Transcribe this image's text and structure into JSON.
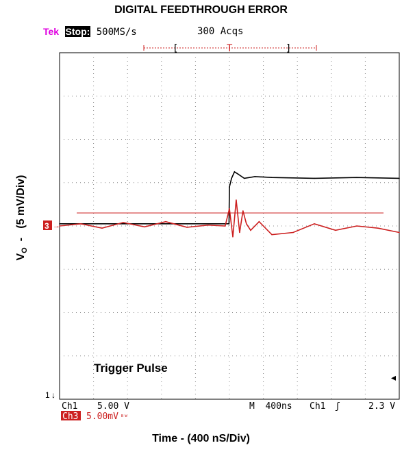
{
  "chart_data": {
    "type": "line",
    "title": "DIGITAL FEEDTHROUGH ERROR",
    "xlabel": "Time - (400 nS/Div)",
    "ylabel": {
      "main": "V",
      "sub": "O",
      "rest": "  -   (5 mV/Div)"
    },
    "grid": true,
    "scope": {
      "brand": "Tek",
      "state": "Stop:",
      "sample_rate": "500MS/s",
      "acquisitions": "300 Acqs",
      "trigger_marker": "T",
      "ch1_label": "Ch1",
      "ch1_scale": "5.00 V",
      "ch3_label": "Ch3",
      "ch3_scale": "5.00mV",
      "ch3_bw": "ᴮᵂ",
      "timebase": "M  400ns",
      "trigger_source": "Ch1",
      "trigger_slope": "ʃ",
      "trigger_level": "2.3 V",
      "ch3_marker": "3",
      "ch1_marker": "1"
    },
    "annotation": "Trigger Pulse",
    "series": [
      {
        "name": "Ch3",
        "color": "#cc1f1f",
        "x": [
          -4.0,
          -3.5,
          -3.0,
          -2.5,
          -2.0,
          -1.5,
          -1.0,
          -0.5,
          -0.1,
          0.0,
          0.08,
          0.16,
          0.24,
          0.32,
          0.4,
          0.5,
          0.7,
          1.0,
          1.5,
          2.0,
          2.5,
          3.0,
          3.5,
          4.0
        ],
        "y": [
          0.0,
          0.05,
          -0.05,
          0.08,
          -0.02,
          0.1,
          -0.03,
          0.02,
          0.0,
          0.4,
          -0.25,
          0.6,
          -0.15,
          0.35,
          0.05,
          -0.1,
          0.1,
          -0.2,
          -0.15,
          0.05,
          -0.1,
          0.0,
          -0.05,
          -0.15
        ]
      },
      {
        "name": "Ch1",
        "color": "#000000",
        "x": [
          -4.0,
          -1.0,
          -0.01,
          0.0,
          0.05,
          0.12,
          0.2,
          0.35,
          0.6,
          1.0,
          2.0,
          3.0,
          4.0
        ],
        "y": [
          0.05,
          0.05,
          0.05,
          0.9,
          1.1,
          1.25,
          1.2,
          1.1,
          1.14,
          1.12,
          1.1,
          1.12,
          1.1
        ]
      }
    ],
    "xlim": [
      -4,
      4
    ],
    "ylim": [
      -4,
      4
    ]
  }
}
